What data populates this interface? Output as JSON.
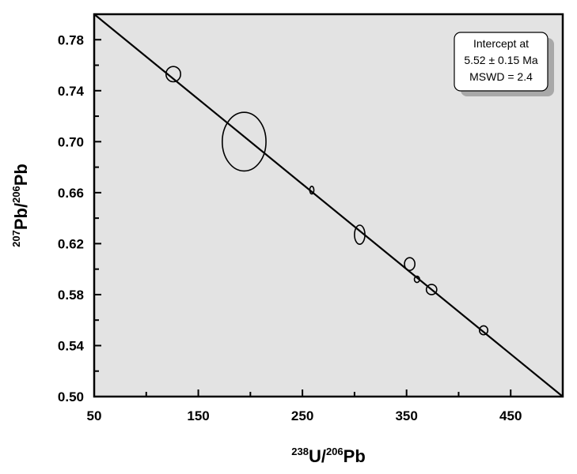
{
  "chart_data": {
    "type": "scatter",
    "title": "",
    "xlabel": {
      "sup1": "238",
      "base1": "U/",
      "sup2": "206",
      "base2": "Pb"
    },
    "ylabel": {
      "sup1": "207",
      "base1": "Pb/",
      "sup2": "206",
      "base2": "Pb"
    },
    "xlim": [
      50,
      500
    ],
    "ylim": [
      0.5,
      0.8
    ],
    "x_ticks": [
      50,
      150,
      250,
      350,
      450
    ],
    "x_tick_labels": [
      "50",
      "150",
      "250",
      "350",
      "450"
    ],
    "x_minor_ticks": [
      100,
      200,
      300,
      400
    ],
    "y_ticks": [
      0.5,
      0.54,
      0.58,
      0.62,
      0.66,
      0.7,
      0.74,
      0.78
    ],
    "y_tick_labels": [
      "0.50",
      "0.54",
      "0.58",
      "0.62",
      "0.66",
      "0.70",
      "0.74",
      "0.78"
    ],
    "y_minor_ticks": [
      0.52,
      0.56,
      0.6,
      0.64,
      0.68,
      0.72,
      0.76
    ],
    "grid": false,
    "background_color": "#e3e3e3",
    "regression_line": {
      "points": [
        [
          50,
          0.8
        ],
        [
          500,
          0.5
        ]
      ]
    },
    "error_ellipses": [
      {
        "x": 126,
        "y": 0.753,
        "rx": 7,
        "ry": 0.006,
        "tilt": 0
      },
      {
        "x": 194,
        "y": 0.7,
        "rx": 21,
        "ry": 0.023,
        "tilt": 0
      },
      {
        "x": 259,
        "y": 0.662,
        "rx": 2,
        "ry": 0.003,
        "tilt": 0
      },
      {
        "x": 305,
        "y": 0.627,
        "rx": 5,
        "ry": 0.0075,
        "tilt": 0
      },
      {
        "x": 353,
        "y": 0.604,
        "rx": 5,
        "ry": 0.005,
        "tilt": 0
      },
      {
        "x": 360,
        "y": 0.592,
        "rx": 2.5,
        "ry": 0.0025,
        "tilt": 0
      },
      {
        "x": 374,
        "y": 0.584,
        "rx": 5,
        "ry": 0.004,
        "tilt": 0
      },
      {
        "x": 424,
        "y": 0.552,
        "rx": 4,
        "ry": 0.0035,
        "tilt": 0
      }
    ],
    "annotation": {
      "lines": [
        "Intercept at",
        "5.52 ± 0.15 Ma",
        "MSWD = 2.4"
      ],
      "placement": "top-right"
    }
  }
}
